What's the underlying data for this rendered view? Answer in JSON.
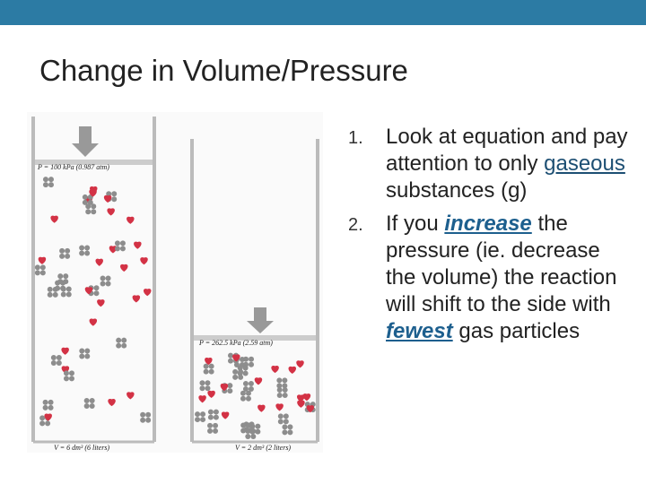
{
  "header": {
    "title": "Change in Volume/Pressure"
  },
  "figure": {
    "left": {
      "pressure": "P = 100 kPa (0.987 atm)",
      "volume": "V = 6 dm³ (6 liters)"
    },
    "right": {
      "pressure": "P = 262.5 kPa (2.59 atm)",
      "volume": "V = 2 dm³ (2 liters)"
    }
  },
  "list": {
    "items": [
      {
        "number": "1.",
        "parts": [
          "Look at equation and pay attention to only ",
          "gaseous",
          " substances (g)"
        ]
      },
      {
        "number": "2.",
        "parts": [
          "If you ",
          "increase",
          " the pressure (ie. decrease the volume) the reaction will shift to the side with ",
          "fewest",
          " gas particles"
        ]
      }
    ]
  }
}
